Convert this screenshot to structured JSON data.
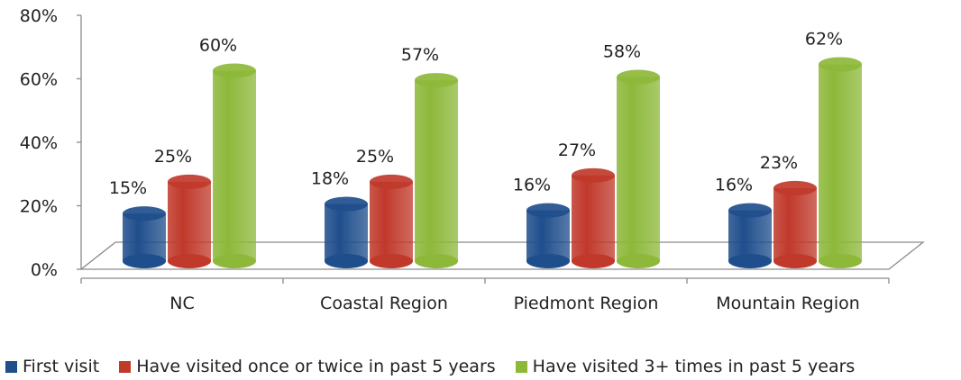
{
  "chart_data": {
    "type": "bar",
    "style": "3d-cylinder",
    "categories": [
      "NC",
      "Coastal Region",
      "Piedmont Region",
      "Mountain Region"
    ],
    "series": [
      {
        "name": "First visit",
        "values": [
          15,
          18,
          16,
          16
        ],
        "labels": [
          "15%",
          "18%",
          "16%",
          "16%"
        ],
        "color": "#1F4E8C"
      },
      {
        "name": "Have visited once or twice in past 5 years",
        "values": [
          25,
          25,
          27,
          23
        ],
        "labels": [
          "25%",
          "25%",
          "27%",
          "23%"
        ],
        "color": "#C0392B"
      },
      {
        "name": "Have visited 3+ times in past 5 years",
        "values": [
          60,
          57,
          58,
          62
        ],
        "labels": [
          "60%",
          "57%",
          "58%",
          "62%"
        ],
        "color": "#8DB83A"
      }
    ],
    "ylim": [
      0,
      80
    ],
    "yticks": [
      "0%",
      "20%",
      "40%",
      "60%",
      "80%"
    ],
    "ytick_values": [
      0,
      20,
      40,
      60,
      80
    ],
    "legend_position": "bottom",
    "grid": false
  }
}
